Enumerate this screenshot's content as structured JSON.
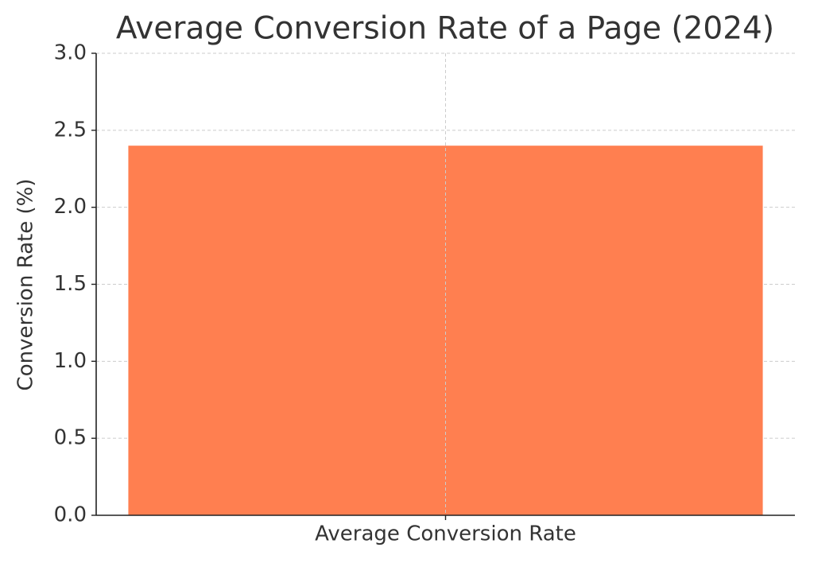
{
  "chart_data": {
    "type": "bar",
    "title": "Average Conversion Rate of a Page (2024)",
    "y_label": "Conversion Rate (%)",
    "categories": [
      "Average Conversion Rate"
    ],
    "values": [
      2.4
    ],
    "color": "#ff7f50",
    "ylim": [
      0,
      3
    ],
    "yticks": [
      {
        "value": 0,
        "label": "0.0"
      },
      0.5,
      {
        "value": 1,
        "label": "1.0"
      },
      1.5,
      {
        "value": 2,
        "label": "2.0"
      },
      2.5,
      {
        "value": 3,
        "label": "3.0"
      }
    ],
    "grid": true
  }
}
